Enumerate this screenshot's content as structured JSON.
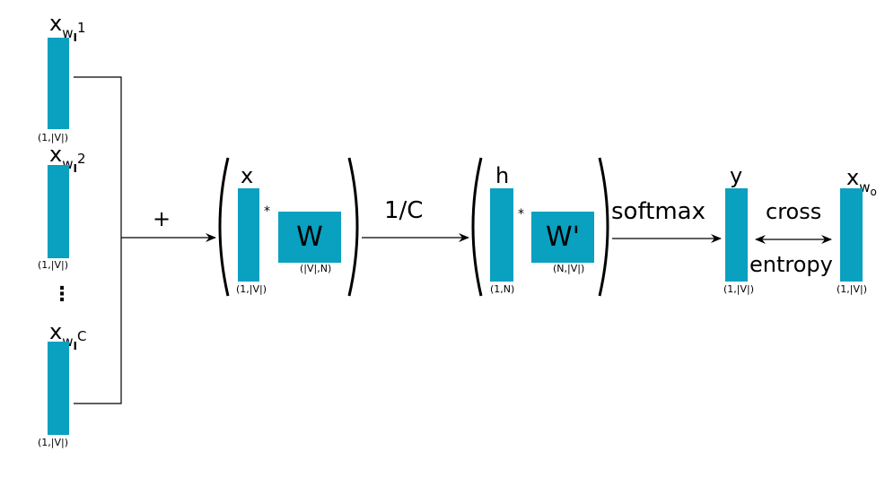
{
  "colors": {
    "block": "#0aa0c0",
    "line": "#000000"
  },
  "inputs": [
    {
      "symbol": "x",
      "sub": "w",
      "subsub": "I",
      "index": "1",
      "dim": "(1,|V|)"
    },
    {
      "symbol": "x",
      "sub": "w",
      "subsub": "I",
      "index": "2",
      "dim": "(1,|V|)"
    },
    {
      "symbol": "x",
      "sub": "w",
      "subsub": "I",
      "index": "C",
      "dim": "(1,|V|)"
    }
  ],
  "ellipsis": "⋮",
  "plus": "+",
  "layer1": {
    "x_label": "x",
    "x_dim": "(1,|V|)",
    "star": "*",
    "w_label": "W",
    "w_dim": "(|V|,N)"
  },
  "scale": "1/C",
  "layer2": {
    "h_label": "h",
    "h_dim": "(1,N)",
    "star": "*",
    "w_label": "W'",
    "w_dim": "(N,|V|)"
  },
  "softmax": "softmax",
  "output": {
    "y_label": "y",
    "y_dim": "(1,|V|)"
  },
  "loss": {
    "line1": "cross",
    "line2": "entropy"
  },
  "target": {
    "symbol": "x",
    "sub": "w",
    "subsub": "o",
    "dim": "(1,|V|)"
  }
}
